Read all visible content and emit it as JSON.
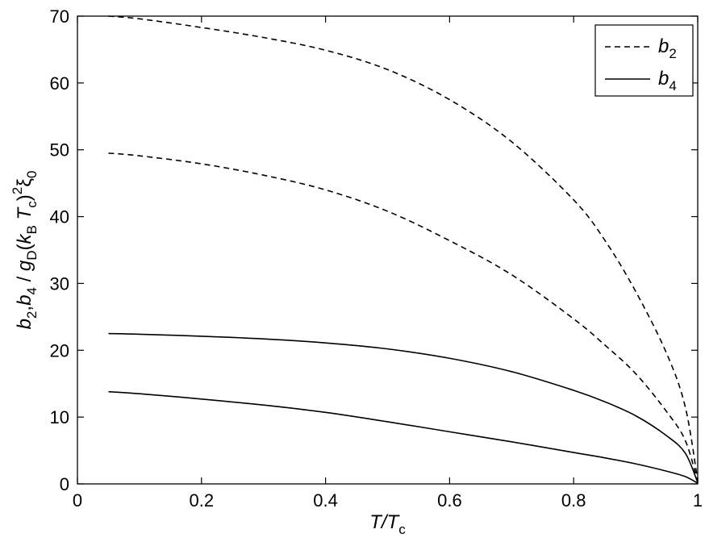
{
  "chart_data": {
    "type": "line",
    "xlabel": {
      "main": "T/T",
      "sub": "c"
    },
    "ylabel": {
      "parts": [
        {
          "t": "b",
          "italic": true
        },
        {
          "t": "2",
          "sub": true
        },
        {
          "t": ",",
          "italic": false
        },
        {
          "t": "b",
          "italic": true
        },
        {
          "t": "4",
          "sub": true
        },
        {
          "t": " / ",
          "italic": false
        },
        {
          "t": "g",
          "italic": true
        },
        {
          "t": "D",
          "sub": true
        },
        {
          "t": "(",
          "italic": false
        },
        {
          "t": "k",
          "italic": true
        },
        {
          "t": "B",
          "sub": true
        },
        {
          "t": " ",
          "italic": false
        },
        {
          "t": "T",
          "italic": true
        },
        {
          "t": "c",
          "sub": true
        },
        {
          "t": ")",
          "italic": false
        },
        {
          "t": "2",
          "sup": true
        },
        {
          "t": "ξ",
          "italic": false
        },
        {
          "t": "0",
          "sub": true
        }
      ]
    },
    "xlim": [
      0,
      1
    ],
    "ylim": [
      0,
      70
    ],
    "x_ticks": [
      0,
      0.2,
      0.4,
      0.6,
      0.8,
      1
    ],
    "x_tick_labels": [
      "0",
      "0.2",
      "0.4",
      "0.6",
      "0.8",
      "1"
    ],
    "y_ticks": [
      0,
      10,
      20,
      30,
      40,
      50,
      60,
      70
    ],
    "y_tick_labels": [
      "0",
      "10",
      "20",
      "30",
      "40",
      "50",
      "60",
      "70"
    ],
    "grid": false,
    "legend_position": "top-right",
    "legend": [
      {
        "label": "b",
        "sub": "2",
        "style": "dashed"
      },
      {
        "label": "b",
        "sub": "4",
        "style": "solid"
      }
    ],
    "series": [
      {
        "legend_index": 0,
        "style": "dashed",
        "x": [
          0.05,
          0.1,
          0.2,
          0.3,
          0.4,
          0.5,
          0.6,
          0.7,
          0.8,
          0.85,
          0.9,
          0.95,
          0.98,
          1.0
        ],
        "y": [
          70.0,
          69.6,
          68.3,
          66.8,
          64.9,
          62.0,
          57.5,
          51.2,
          42.5,
          36.5,
          28.8,
          19.5,
          11.5,
          0.5
        ]
      },
      {
        "legend_index": 0,
        "style": "dashed",
        "x": [
          0.05,
          0.1,
          0.2,
          0.3,
          0.4,
          0.5,
          0.6,
          0.7,
          0.8,
          0.85,
          0.9,
          0.95,
          0.98,
          1.0
        ],
        "y": [
          49.5,
          49.1,
          47.9,
          46.2,
          44.0,
          40.8,
          36.4,
          31.3,
          24.7,
          20.8,
          16.5,
          10.8,
          6.5,
          0.3
        ]
      },
      {
        "legend_index": 1,
        "style": "solid",
        "x": [
          0.05,
          0.1,
          0.2,
          0.3,
          0.4,
          0.5,
          0.6,
          0.7,
          0.8,
          0.85,
          0.9,
          0.95,
          0.98,
          1.0
        ],
        "y": [
          22.5,
          22.4,
          22.1,
          21.7,
          21.1,
          20.2,
          18.8,
          16.8,
          14.0,
          12.3,
          10.2,
          7.2,
          4.6,
          0.2
        ]
      },
      {
        "legend_index": 1,
        "style": "solid",
        "x": [
          0.05,
          0.1,
          0.2,
          0.3,
          0.4,
          0.5,
          0.6,
          0.7,
          0.8,
          0.85,
          0.9,
          0.95,
          0.98,
          1.0
        ],
        "y": [
          13.8,
          13.5,
          12.7,
          11.8,
          10.7,
          9.3,
          7.8,
          6.3,
          4.7,
          3.9,
          3.0,
          1.9,
          1.1,
          0.1
        ]
      }
    ]
  }
}
